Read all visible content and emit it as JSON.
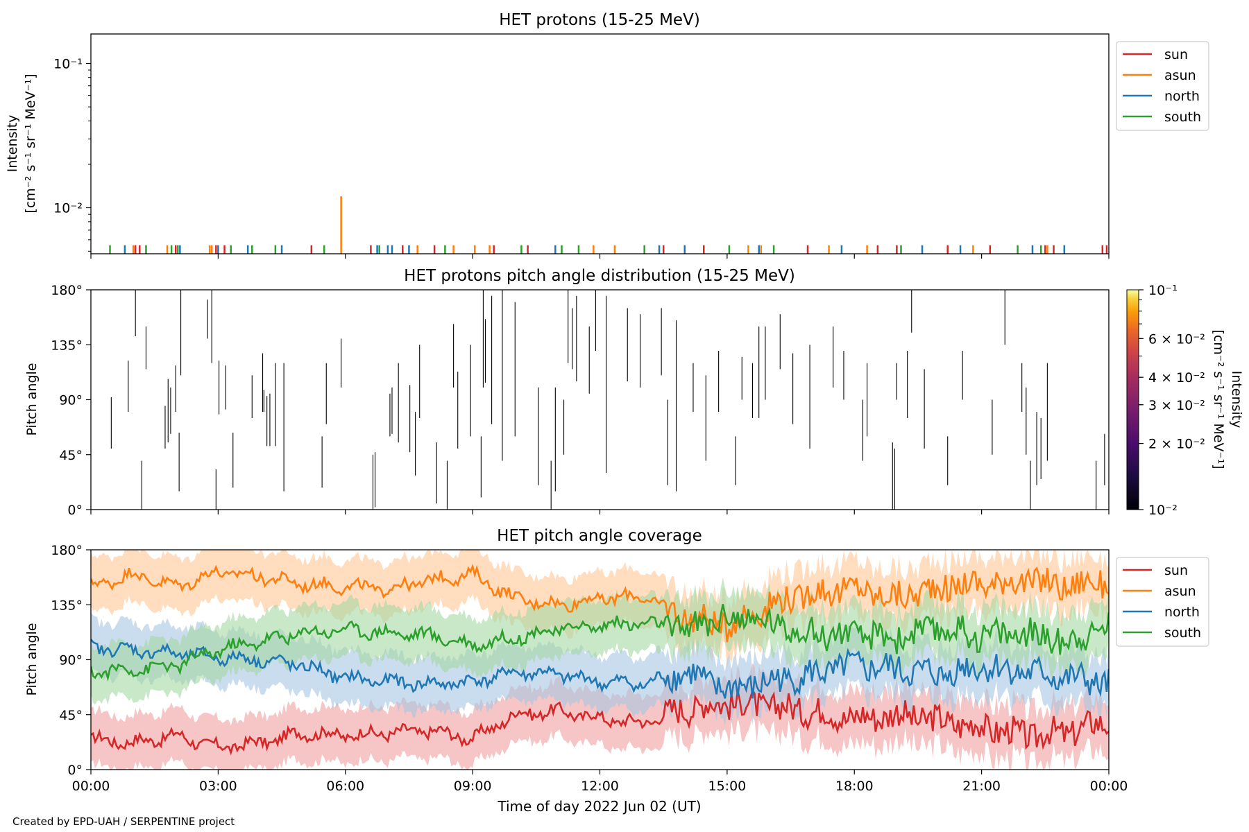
{
  "figure": {
    "credit": "Created by EPD-UAH / SERPENTINE project",
    "xlabel": "Time of day 2022 Jun 02 (UT)",
    "xticks": [
      "00:00",
      "03:00",
      "06:00",
      "09:00",
      "12:00",
      "15:00",
      "18:00",
      "21:00",
      "00:00"
    ]
  },
  "chart_data": [
    {
      "type": "line",
      "title": "HET protons (15-25 MeV)",
      "ylabel": [
        "Intensity",
        "[cm⁻² s⁻¹ sr⁻¹ MeV⁻¹]"
      ],
      "yscale": "log",
      "ylim": [
        0.0048,
        0.16
      ],
      "yticks": [
        {
          "value": 0.01,
          "label": "10⁻²"
        },
        {
          "value": 0.1,
          "label": "10⁻¹"
        }
      ],
      "xlim_hours": [
        0,
        24
      ],
      "legend_position": "outside-right",
      "series": [
        {
          "name": "sun",
          "color": "#d62728",
          "spikes": [
            [
              1.05,
              0.0055
            ],
            [
              1.15,
              0.0055
            ],
            [
              2.0,
              0.0055
            ],
            [
              2.95,
              0.0055
            ],
            [
              3.15,
              0.0055
            ],
            [
              5.2,
              0.0055
            ],
            [
              6.6,
              0.0055
            ],
            [
              7.35,
              0.0055
            ],
            [
              8.1,
              0.0055
            ],
            [
              9.5,
              0.0055
            ],
            [
              10.3,
              0.0055
            ],
            [
              13.5,
              0.0055
            ],
            [
              14.45,
              0.0055
            ],
            [
              16.9,
              0.0055
            ],
            [
              18.55,
              0.0055
            ],
            [
              19.0,
              0.0055
            ],
            [
              20.2,
              0.0055
            ],
            [
              21.2,
              0.0055
            ],
            [
              22.5,
              0.0055
            ],
            [
              22.7,
              0.0055
            ],
            [
              23.85,
              0.0055
            ],
            [
              23.95,
              0.0055
            ]
          ]
        },
        {
          "name": "asun",
          "color": "#ff7f0e",
          "spikes": [
            [
              1.0,
              0.0055
            ],
            [
              1.8,
              0.0055
            ],
            [
              2.8,
              0.0055
            ],
            [
              2.85,
              0.0055
            ],
            [
              5.9,
              0.012
            ],
            [
              7.7,
              0.0055
            ],
            [
              8.55,
              0.0055
            ],
            [
              9.05,
              0.0055
            ],
            [
              9.4,
              0.0055
            ],
            [
              11.85,
              0.0055
            ],
            [
              12.35,
              0.0055
            ],
            [
              15.5,
              0.0055
            ],
            [
              15.8,
              0.0055
            ],
            [
              17.4,
              0.0055
            ],
            [
              18.3,
              0.0055
            ],
            [
              20.8,
              0.0055
            ],
            [
              22.55,
              0.0055
            ]
          ]
        },
        {
          "name": "north",
          "color": "#1f77b4",
          "spikes": [
            [
              0.8,
              0.0055
            ],
            [
              2.1,
              0.0055
            ],
            [
              3.0,
              0.0055
            ],
            [
              3.7,
              0.0055
            ],
            [
              4.5,
              0.0055
            ],
            [
              6.75,
              0.0055
            ],
            [
              7.0,
              0.0055
            ],
            [
              7.1,
              0.0055
            ],
            [
              7.5,
              0.0055
            ],
            [
              10.95,
              0.0055
            ],
            [
              13.4,
              0.0055
            ],
            [
              14.0,
              0.0055
            ],
            [
              15.75,
              0.0055
            ],
            [
              17.7,
              0.0055
            ],
            [
              19.6,
              0.0055
            ],
            [
              20.5,
              0.0055
            ],
            [
              22.2,
              0.0055
            ],
            [
              22.95,
              0.0055
            ]
          ]
        },
        {
          "name": "south",
          "color": "#2ca02c",
          "spikes": [
            [
              0.45,
              0.0055
            ],
            [
              1.3,
              0.0055
            ],
            [
              1.9,
              0.0055
            ],
            [
              2.05,
              0.0055
            ],
            [
              3.3,
              0.0055
            ],
            [
              3.8,
              0.0055
            ],
            [
              4.35,
              0.0055
            ],
            [
              5.5,
              0.0055
            ],
            [
              6.8,
              0.0055
            ],
            [
              8.35,
              0.0055
            ],
            [
              10.15,
              0.0055
            ],
            [
              11.1,
              0.0055
            ],
            [
              11.5,
              0.0055
            ],
            [
              13.05,
              0.0055
            ],
            [
              15.05,
              0.0055
            ],
            [
              16.1,
              0.0055
            ],
            [
              19.1,
              0.0055
            ],
            [
              21.85,
              0.0055
            ],
            [
              22.4,
              0.0055
            ]
          ]
        }
      ]
    },
    {
      "type": "heatmap",
      "title": "HET protons pitch angle distribution (15-25 MeV)",
      "ylabel": "Pitch angle",
      "ylim": [
        0,
        180
      ],
      "yticks": [
        "0°",
        "45°",
        "90°",
        "135°",
        "180°"
      ],
      "xlim_hours": [
        0,
        24
      ],
      "marks": [
        [
          0.48,
          50,
          92
        ],
        [
          0.88,
          80,
          122
        ],
        [
          1.05,
          142,
          180
        ],
        [
          1.2,
          0,
          40
        ],
        [
          1.3,
          115,
          150
        ],
        [
          1.75,
          50,
          85
        ],
        [
          1.82,
          55,
          107
        ],
        [
          1.88,
          62,
          100
        ],
        [
          2.0,
          80,
          118
        ],
        [
          2.08,
          15,
          63
        ],
        [
          2.12,
          110,
          180
        ],
        [
          2.75,
          140,
          172
        ],
        [
          2.85,
          120,
          180
        ],
        [
          2.95,
          0,
          33
        ],
        [
          3.02,
          78,
          122
        ],
        [
          3.18,
          82,
          118
        ],
        [
          3.35,
          18,
          63
        ],
        [
          3.8,
          75,
          110
        ],
        [
          4.05,
          80,
          128
        ],
        [
          4.08,
          80,
          98
        ],
        [
          4.15,
          52,
          93
        ],
        [
          4.22,
          52,
          95
        ],
        [
          4.35,
          52,
          120
        ],
        [
          4.55,
          15,
          120
        ],
        [
          5.45,
          18,
          60
        ],
        [
          5.55,
          70,
          120
        ],
        [
          5.9,
          100,
          140
        ],
        [
          6.65,
          0,
          45
        ],
        [
          6.7,
          2,
          47
        ],
        [
          7.05,
          60,
          95
        ],
        [
          7.1,
          62,
          100
        ],
        [
          7.25,
          55,
          120
        ],
        [
          7.52,
          47,
          102
        ],
        [
          7.65,
          28,
          80
        ],
        [
          7.75,
          75,
          135
        ],
        [
          8.15,
          5,
          55
        ],
        [
          8.4,
          0,
          40
        ],
        [
          8.55,
          100,
          152
        ],
        [
          8.65,
          50,
          113
        ],
        [
          8.95,
          60,
          135
        ],
        [
          9.2,
          10,
          60
        ],
        [
          9.25,
          100,
          180
        ],
        [
          9.3,
          104,
          156
        ],
        [
          9.45,
          70,
          175
        ],
        [
          9.7,
          40,
          180
        ],
        [
          10.0,
          60,
          170
        ],
        [
          10.55,
          20,
          100
        ],
        [
          10.85,
          0,
          40
        ],
        [
          10.95,
          15,
          100
        ],
        [
          11.15,
          45,
          90
        ],
        [
          11.25,
          120,
          180
        ],
        [
          11.35,
          115,
          165
        ],
        [
          11.45,
          105,
          175
        ],
        [
          11.75,
          95,
          150
        ],
        [
          11.9,
          130,
          180
        ],
        [
          12.15,
          30,
          175
        ],
        [
          12.65,
          105,
          165
        ],
        [
          12.95,
          100,
          160
        ],
        [
          13.45,
          110,
          165
        ],
        [
          13.6,
          20,
          90
        ],
        [
          13.8,
          15,
          155
        ],
        [
          14.2,
          80,
          120
        ],
        [
          14.5,
          40,
          110
        ],
        [
          14.8,
          80,
          130
        ],
        [
          15.2,
          20,
          60
        ],
        [
          15.35,
          90,
          125
        ],
        [
          15.6,
          75,
          120
        ],
        [
          15.75,
          75,
          150
        ],
        [
          15.9,
          90,
          150
        ],
        [
          16.25,
          115,
          160
        ],
        [
          16.55,
          70,
          128
        ],
        [
          16.95,
          50,
          135
        ],
        [
          17.5,
          100,
          150
        ],
        [
          17.75,
          90,
          130
        ],
        [
          18.2,
          40,
          90
        ],
        [
          18.3,
          60,
          120
        ],
        [
          18.9,
          0,
          55
        ],
        [
          18.95,
          0,
          50
        ],
        [
          19.0,
          90,
          120
        ],
        [
          19.25,
          75,
          130
        ],
        [
          19.35,
          145,
          180
        ],
        [
          19.65,
          50,
          115
        ],
        [
          20.2,
          20,
          60
        ],
        [
          20.55,
          90,
          130
        ],
        [
          21.25,
          45,
          90
        ],
        [
          21.55,
          135,
          180
        ],
        [
          21.95,
          80,
          120
        ],
        [
          22.05,
          45,
          100
        ],
        [
          22.15,
          0,
          40
        ],
        [
          22.3,
          20,
          80
        ],
        [
          22.4,
          25,
          75
        ],
        [
          22.55,
          40,
          120
        ],
        [
          23.7,
          0,
          40
        ],
        [
          23.9,
          20,
          62
        ]
      ],
      "colorbar": {
        "label": [
          "Intensity",
          "[cm⁻² s⁻¹ sr⁻¹ MeV⁻¹]"
        ],
        "scale": "log",
        "range": [
          0.01,
          0.1
        ],
        "colormap": "inferno",
        "ticks": [
          {
            "value": 0.01,
            "label": "10⁻²"
          },
          {
            "value": 0.02,
            "label": "2 × 10⁻²"
          },
          {
            "value": 0.03,
            "label": "3 × 10⁻²"
          },
          {
            "value": 0.04,
            "label": "4 × 10⁻²"
          },
          {
            "value": 0.06,
            "label": "6 × 10⁻²"
          },
          {
            "value": 0.1,
            "label": "10⁻¹"
          }
        ]
      }
    },
    {
      "type": "line",
      "title": "HET pitch angle coverage",
      "ylabel": "Pitch angle",
      "ylim": [
        0,
        180
      ],
      "yticks": [
        "0°",
        "45°",
        "90°",
        "135°",
        "180°"
      ],
      "xlim_hours": [
        0,
        24
      ],
      "legend_position": "outside-right",
      "band_halfwidth_deg": 22,
      "series": [
        {
          "name": "sun",
          "color": "#d62728",
          "band_color": "#f0a0a0",
          "x": [
            0,
            1,
            2,
            3,
            4,
            5,
            6,
            7,
            8,
            9,
            10,
            11,
            12,
            13,
            14,
            15,
            16,
            17,
            18,
            19,
            20,
            21,
            22,
            23,
            24
          ],
          "values": [
            25,
            22,
            28,
            18,
            22,
            30,
            28,
            30,
            32,
            25,
            45,
            48,
            42,
            38,
            50,
            55,
            52,
            48,
            42,
            45,
            40,
            35,
            28,
            30,
            40
          ]
        },
        {
          "name": "asun",
          "color": "#ff7f0e",
          "band_color": "#ffc793",
          "x": [
            0,
            1,
            2,
            3,
            4,
            5,
            6,
            7,
            8,
            9,
            10,
            11,
            12,
            13,
            14,
            15,
            16,
            17,
            18,
            19,
            20,
            21,
            22,
            23,
            24
          ],
          "values": [
            150,
            160,
            150,
            162,
            158,
            152,
            150,
            148,
            155,
            160,
            140,
            135,
            140,
            142,
            125,
            118,
            135,
            145,
            148,
            140,
            150,
            152,
            155,
            150,
            155
          ]
        },
        {
          "name": "north",
          "color": "#1f77b4",
          "band_color": "#a7c7e3",
          "x": [
            0,
            1,
            2,
            3,
            4,
            5,
            6,
            7,
            8,
            9,
            10,
            11,
            12,
            13,
            14,
            15,
            16,
            17,
            18,
            19,
            20,
            21,
            22,
            23,
            24
          ],
          "values": [
            100,
            98,
            95,
            92,
            90,
            85,
            75,
            72,
            70,
            72,
            80,
            78,
            72,
            70,
            80,
            65,
            72,
            78,
            85,
            82,
            78,
            85,
            80,
            75,
            70
          ]
        },
        {
          "name": "south",
          "color": "#2ca02c",
          "band_color": "#a4d8a4",
          "x": [
            0,
            1,
            2,
            3,
            4,
            5,
            6,
            7,
            8,
            9,
            10,
            11,
            12,
            13,
            14,
            15,
            16,
            17,
            18,
            19,
            20,
            21,
            22,
            23,
            24
          ],
          "values": [
            80,
            82,
            85,
            98,
            105,
            112,
            115,
            112,
            110,
            102,
            108,
            115,
            118,
            120,
            115,
            125,
            120,
            112,
            110,
            108,
            115,
            110,
            112,
            105,
            118
          ]
        }
      ]
    }
  ]
}
